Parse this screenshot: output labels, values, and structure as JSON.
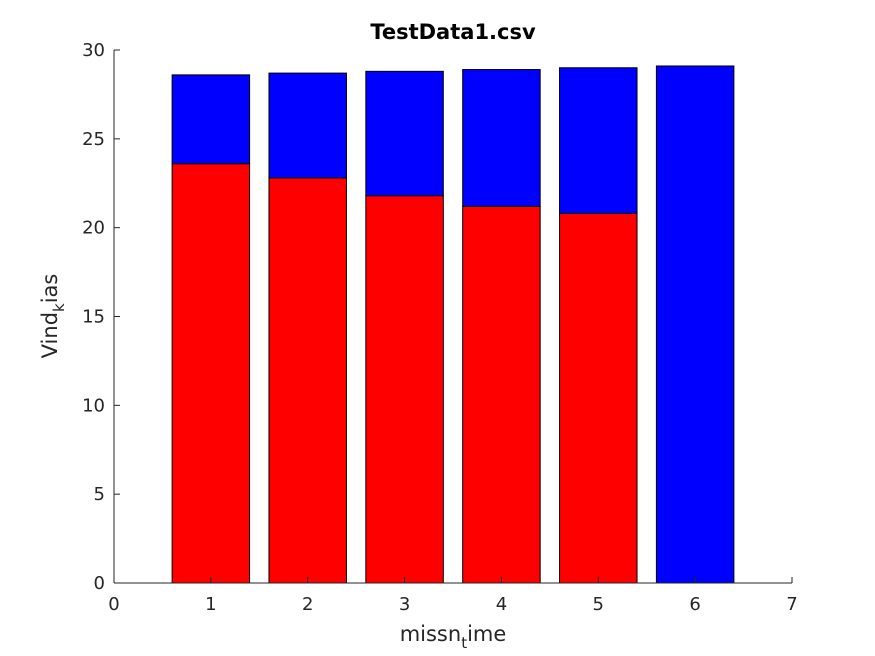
{
  "chart_data": {
    "type": "bar",
    "stacked": true,
    "title": "TestData1.csv",
    "xlabel": {
      "main": "missn",
      "sub": "t",
      "rest": "ime"
    },
    "ylabel": {
      "main": "Vind",
      "sub": "k",
      "rest": "ias"
    },
    "x": [
      1,
      2,
      3,
      4,
      5,
      6
    ],
    "xlim": [
      0,
      7
    ],
    "ylim": [
      0,
      30
    ],
    "xticks": [
      "0",
      "1",
      "2",
      "3",
      "4",
      "5",
      "6",
      "7"
    ],
    "yticks": [
      "0",
      "5",
      "10",
      "15",
      "20",
      "25",
      "30"
    ],
    "grid": false,
    "series": [
      {
        "color": "#ff0000",
        "values": [
          23.6,
          22.8,
          21.8,
          21.2,
          20.8,
          0
        ]
      },
      {
        "color": "#0000ff",
        "values": [
          5.0,
          5.9,
          7.0,
          7.7,
          8.2,
          29.1
        ]
      }
    ]
  }
}
